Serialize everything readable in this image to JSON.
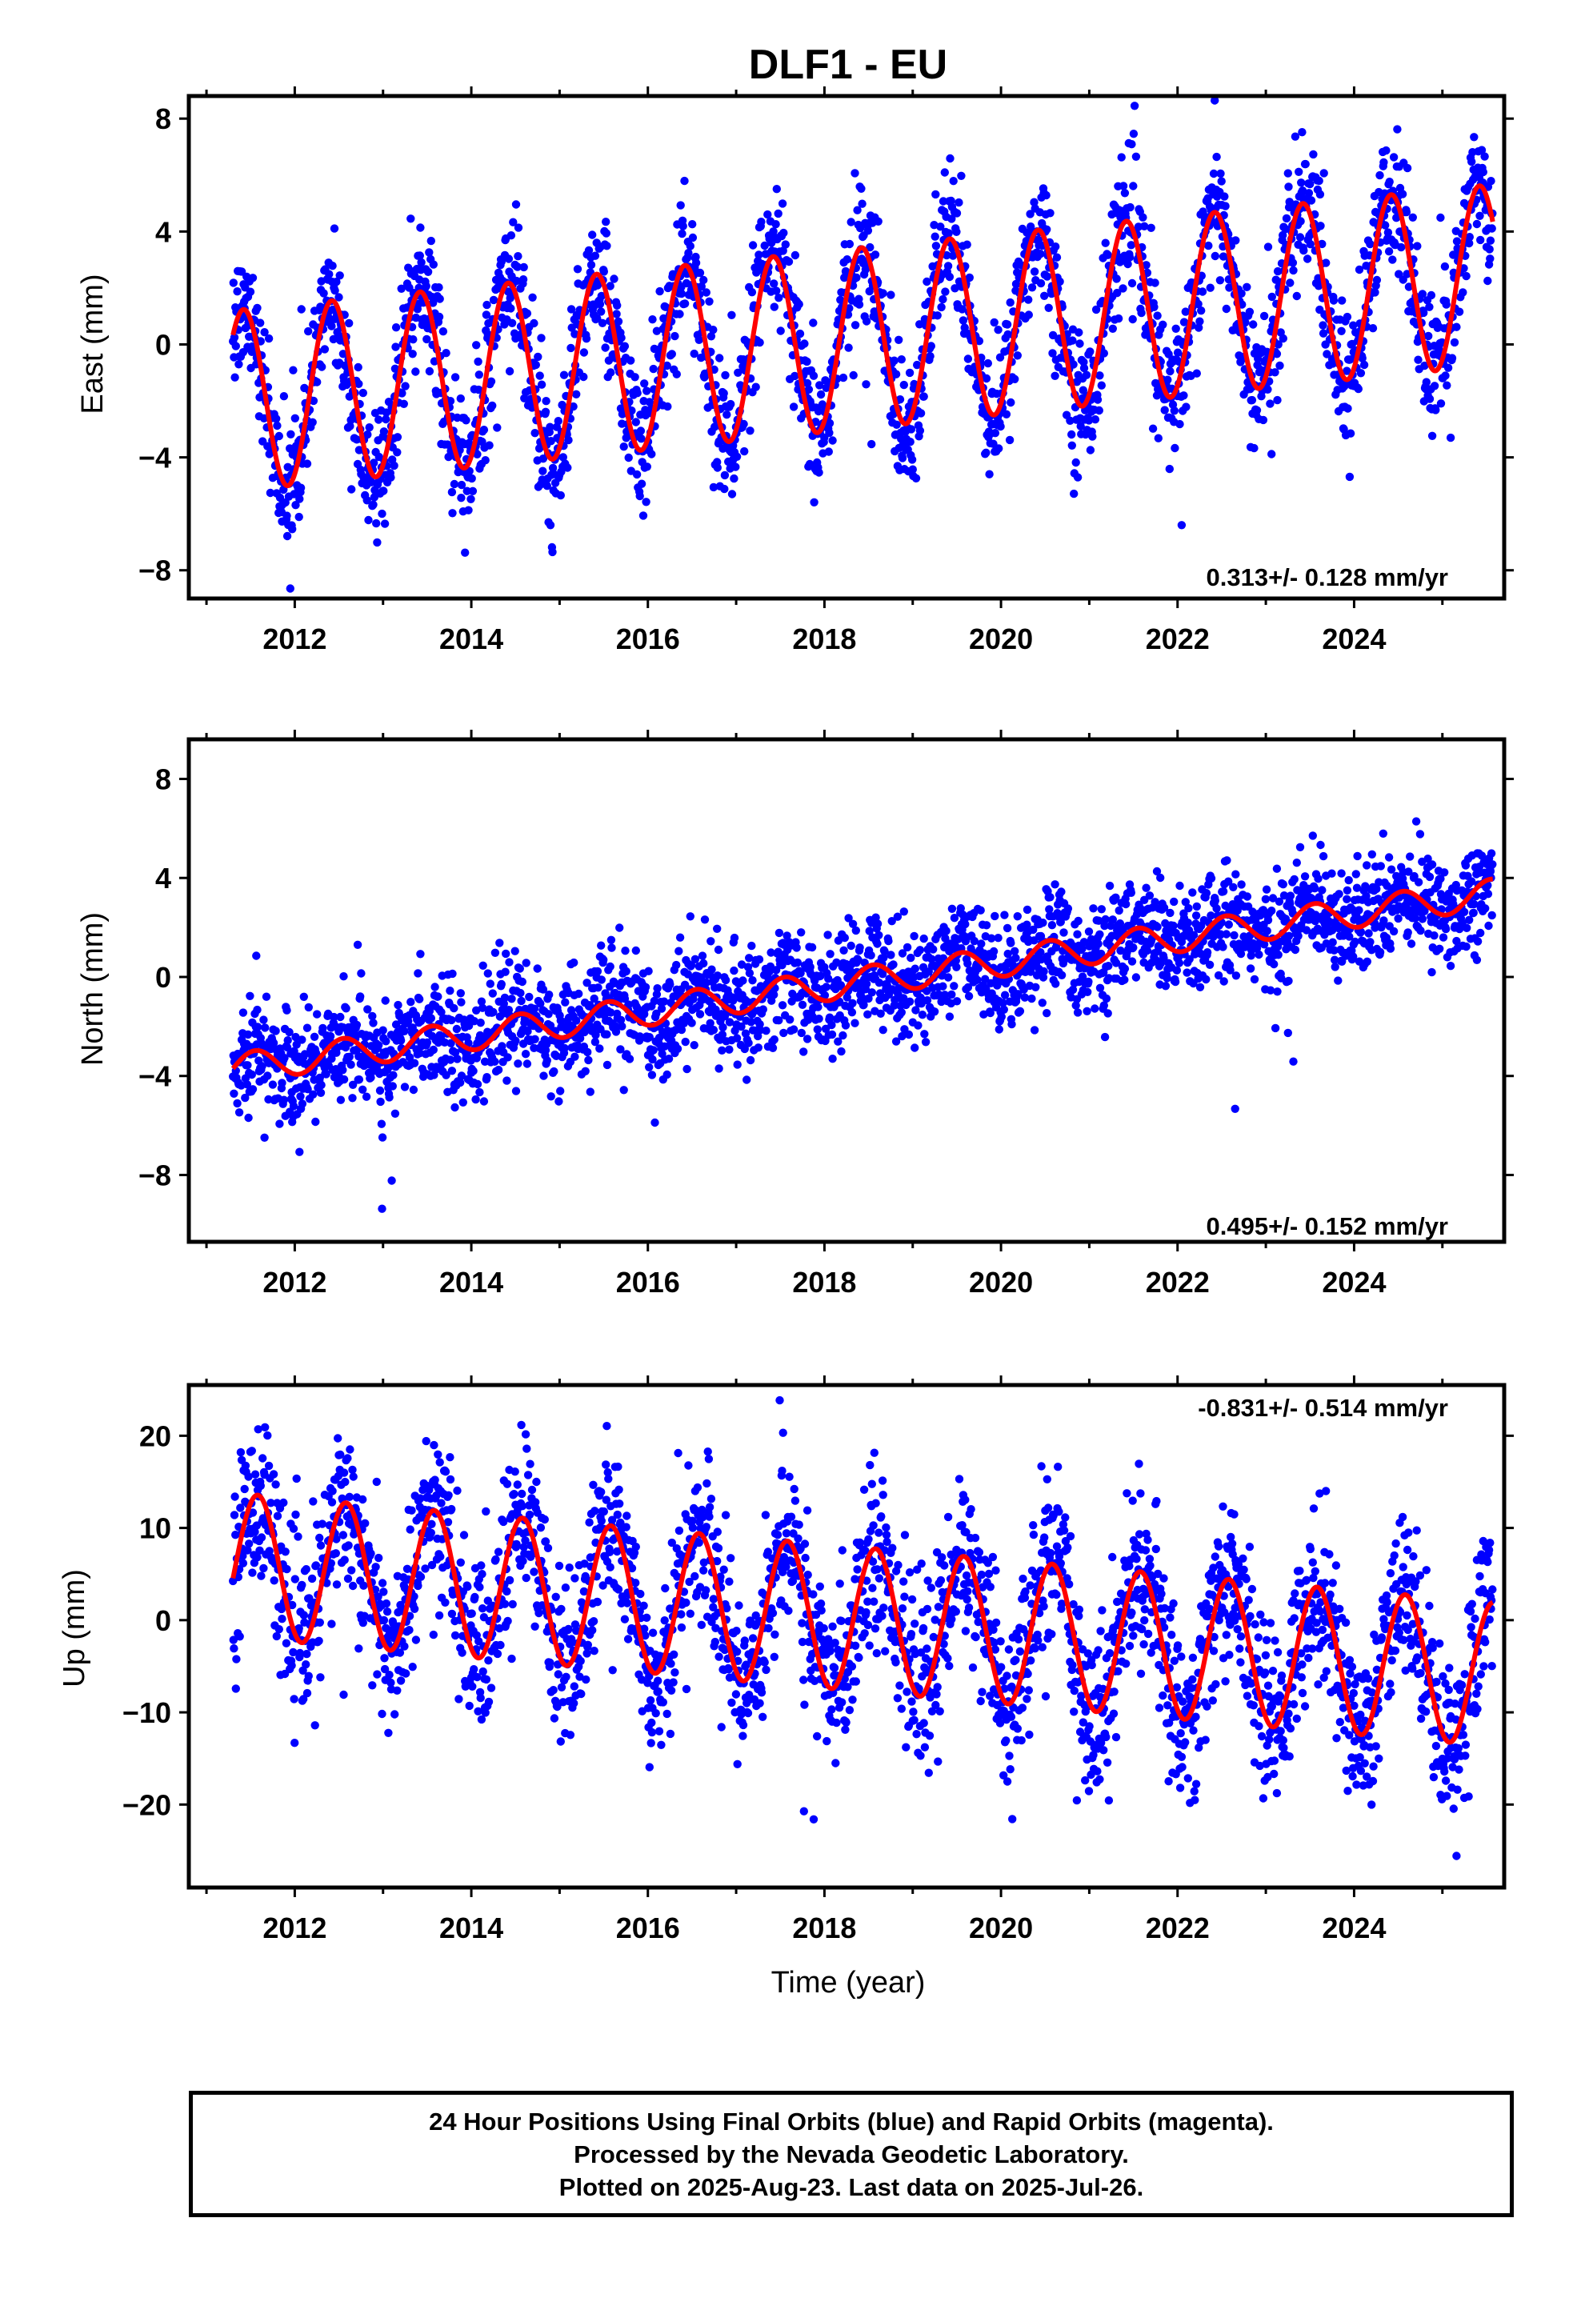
{
  "title": "DLF1 - EU",
  "footer": {
    "line1": "24 Hour Positions Using Final Orbits (blue) and Rapid Orbits (magenta).",
    "line2": "Processed by the Nevada Geodetic Laboratory.",
    "line3": "Plotted on 2025-Aug-23. Last data on 2025-Jul-26."
  },
  "colors": {
    "data_points": "#0000ff",
    "model_fit": "#ff0000",
    "frame": "#000000"
  },
  "chart_data": [
    {
      "type": "scatter",
      "component": "East",
      "ylabel": "East (mm)",
      "xlabel": "",
      "xlim": [
        2010.8,
        2025.7
      ],
      "ylim": [
        -9,
        8.8
      ],
      "xticks": [
        "2012",
        "2014",
        "2016",
        "2018",
        "2020",
        "2022",
        "2024"
      ],
      "yticks": [
        "8",
        "4",
        "0",
        "−4",
        "−8"
      ],
      "ytick_values": [
        8,
        4,
        0,
        -4,
        -8
      ],
      "rate_label": "0.313+/- 0.128 mm/yr",
      "rate_position": "bottom-right",
      "model": {
        "mean_at_2011_3": -2.0,
        "trend_mm_per_yr": 0.313,
        "annual_amplitude": 3.2,
        "annual_peak_phase": 0.42
      },
      "scatter_sigma": 1.2,
      "series": [
        {
          "values": "daily positions 2011.3–2025.57"
        },
        {
          "values": "model fit (trend + annual)"
        }
      ]
    },
    {
      "type": "scatter",
      "component": "North",
      "ylabel": "North (mm)",
      "xlabel": "",
      "xlim": [
        2010.8,
        2025.7
      ],
      "ylim": [
        -10.7,
        9.6
      ],
      "xticks": [
        "2012",
        "2014",
        "2016",
        "2018",
        "2020",
        "2022",
        "2024"
      ],
      "yticks": [
        "8",
        "4",
        "0",
        "−4",
        "−8"
      ],
      "ytick_values": [
        8,
        4,
        0,
        -4,
        -8
      ],
      "rate_label": "0.495+/- 0.152 mm/yr",
      "rate_position": "bottom-right",
      "model": {
        "mean_at_2011_3": -3.7,
        "trend_mm_per_yr": 0.495,
        "annual_amplitude": 0.6,
        "annual_peak_phase": 0.55
      },
      "scatter_sigma": 1.1,
      "series": [
        {
          "values": "daily positions 2011.3–2025.57"
        },
        {
          "values": "model fit (trend + annual)"
        }
      ]
    },
    {
      "type": "scatter",
      "component": "Up",
      "ylabel": "Up (mm)",
      "xlabel": "Time (year)",
      "xlim": [
        2010.8,
        2025.7
      ],
      "ylim": [
        -29,
        25.5
      ],
      "xticks": [
        "2012",
        "2014",
        "2016",
        "2018",
        "2020",
        "2022",
        "2024"
      ],
      "yticks": [
        "20",
        "10",
        "0",
        "−10",
        "−20"
      ],
      "ytick_values": [
        20,
        10,
        0,
        -10,
        -20
      ],
      "rate_label": "-0.831+/- 0.514 mm/yr",
      "rate_position": "top-right",
      "model": {
        "mean_at_2011_3": 6.0,
        "trend_mm_per_yr": -0.831,
        "annual_amplitude": 7.8,
        "annual_peak_phase": 0.58
      },
      "scatter_sigma": 4.5,
      "series": [
        {
          "values": "daily positions 2011.3–2025.57"
        },
        {
          "values": "model fit (trend + annual)"
        }
      ]
    }
  ]
}
